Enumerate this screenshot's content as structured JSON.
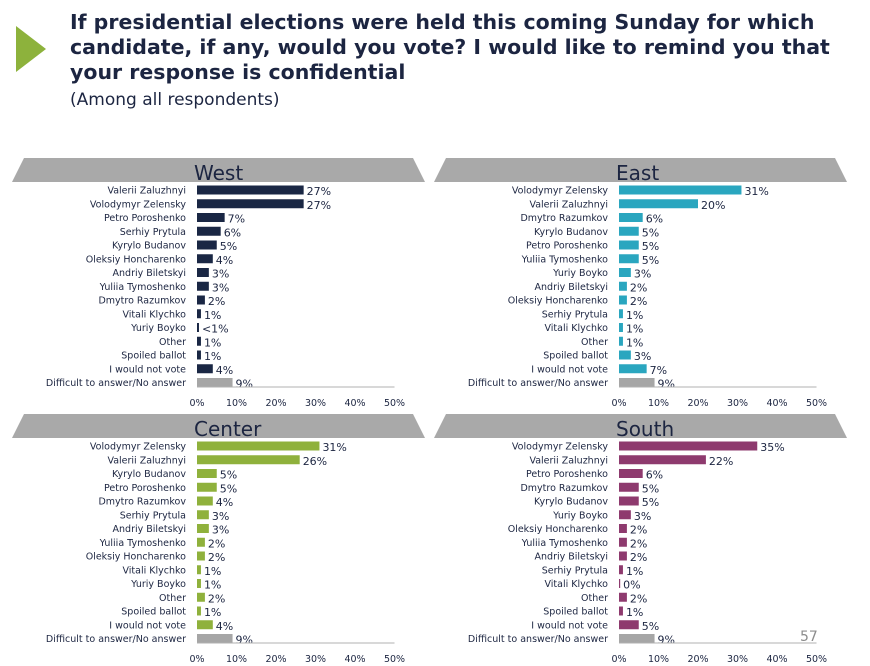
{
  "header": {
    "title": "If presidential elections were held this coming Sunday for which candidate, if any, would you vote? I would like to remind you that your response is confidential",
    "subtitle": "(Among all respondents)"
  },
  "page_number": "57",
  "colors": {
    "accent_arrow": "#8db23c",
    "tab_gray": "#a9a9a9",
    "answer_gray": "#a6a6a6"
  },
  "chart_data": [
    {
      "type": "bar",
      "title": "West",
      "color": "#1a2744",
      "xlim": [
        0,
        50
      ],
      "ticks": [
        "0%",
        "10%",
        "20%",
        "30%",
        "40%",
        "50%"
      ],
      "categories": [
        "Valerii Zaluzhnyi",
        "Volodymyr Zelensky",
        "Petro Poroshenko",
        "Serhiy Prytula",
        "Kyrylo Budanov",
        "Oleksiy Honcharenko",
        "Andriy Biletskyi",
        "Yuliia Tymoshenko",
        "Dmytro Razumkov",
        "Vitali Klychko",
        "Yuriy Boyko",
        "Other",
        "Spoiled ballot",
        "I would not vote",
        "Difficult to answer/No answer"
      ],
      "values": [
        27,
        27,
        7,
        6,
        5,
        4,
        3,
        3,
        2,
        1,
        0.5,
        1,
        1,
        4,
        9
      ],
      "value_labels": [
        "27%",
        "27%",
        "7%",
        "6%",
        "5%",
        "4%",
        "3%",
        "3%",
        "2%",
        "1%",
        "<1%",
        "1%",
        "1%",
        "4%",
        "9%"
      ]
    },
    {
      "type": "bar",
      "title": "East",
      "color": "#2aa6bf",
      "xlim": [
        0,
        50
      ],
      "ticks": [
        "0%",
        "10%",
        "20%",
        "30%",
        "40%",
        "50%"
      ],
      "categories": [
        "Volodymyr Zelensky",
        "Valerii Zaluzhnyi",
        "Dmytro Razumkov",
        "Kyrylo Budanov",
        "Petro Poroshenko",
        "Yuliia Tymoshenko",
        "Yuriy Boyko",
        "Andriy Biletskyi",
        "Oleksiy Honcharenko",
        "Serhiy Prytula",
        "Vitali Klychko",
        "Other",
        "Spoiled ballot",
        "I would not vote",
        "Difficult to answer/No answer"
      ],
      "values": [
        31,
        20,
        6,
        5,
        5,
        5,
        3,
        2,
        2,
        1,
        1,
        1,
        3,
        7,
        9
      ],
      "value_labels": [
        "31%",
        "20%",
        "6%",
        "5%",
        "5%",
        "5%",
        "3%",
        "2%",
        "2%",
        "1%",
        "1%",
        "1%",
        "3%",
        "7%",
        "9%"
      ]
    },
    {
      "type": "bar",
      "title": "Center",
      "color": "#8fb13c",
      "xlim": [
        0,
        50
      ],
      "ticks": [
        "0%",
        "10%",
        "20%",
        "30%",
        "40%",
        "50%"
      ],
      "categories": [
        "Volodymyr Zelensky",
        "Valerii Zaluzhnyi",
        "Kyrylo Budanov",
        "Petro Poroshenko",
        "Dmytro Razumkov",
        "Serhiy Prytula",
        "Andriy Biletskyi",
        "Yuliia Tymoshenko",
        "Oleksiy Honcharenko",
        "Vitali Klychko",
        "Yuriy Boyko",
        "Other",
        "Spoiled ballot",
        "I would not vote",
        "Difficult to answer/No answer"
      ],
      "values": [
        31,
        26,
        5,
        5,
        4,
        3,
        3,
        2,
        2,
        1,
        1,
        2,
        1,
        4,
        9
      ],
      "value_labels": [
        "31%",
        "26%",
        "5%",
        "5%",
        "4%",
        "3%",
        "3%",
        "2%",
        "2%",
        "1%",
        "1%",
        "2%",
        "1%",
        "4%",
        "9%"
      ]
    },
    {
      "type": "bar",
      "title": "South",
      "color": "#8e3a6e",
      "xlim": [
        0,
        50
      ],
      "ticks": [
        "0%",
        "10%",
        "20%",
        "30%",
        "40%",
        "50%"
      ],
      "categories": [
        "Volodymyr Zelensky",
        "Valerii Zaluzhnyi",
        "Petro Poroshenko",
        "Dmytro Razumkov",
        "Kyrylo Budanov",
        "Yuriy Boyko",
        "Oleksiy Honcharenko",
        "Yuliia Tymoshenko",
        "Andriy Biletskyi",
        "Serhiy Prytula",
        "Vitali Klychko",
        "Other",
        "Spoiled ballot",
        "I would not vote",
        "Difficult to answer/No answer"
      ],
      "values": [
        35,
        22,
        6,
        5,
        5,
        3,
        2,
        2,
        2,
        1,
        0.3,
        2,
        1,
        5,
        9
      ],
      "value_labels": [
        "35%",
        "22%",
        "6%",
        "5%",
        "5%",
        "3%",
        "2%",
        "2%",
        "2%",
        "1%",
        "0%",
        "2%",
        "1%",
        "5%",
        "9%"
      ]
    }
  ]
}
